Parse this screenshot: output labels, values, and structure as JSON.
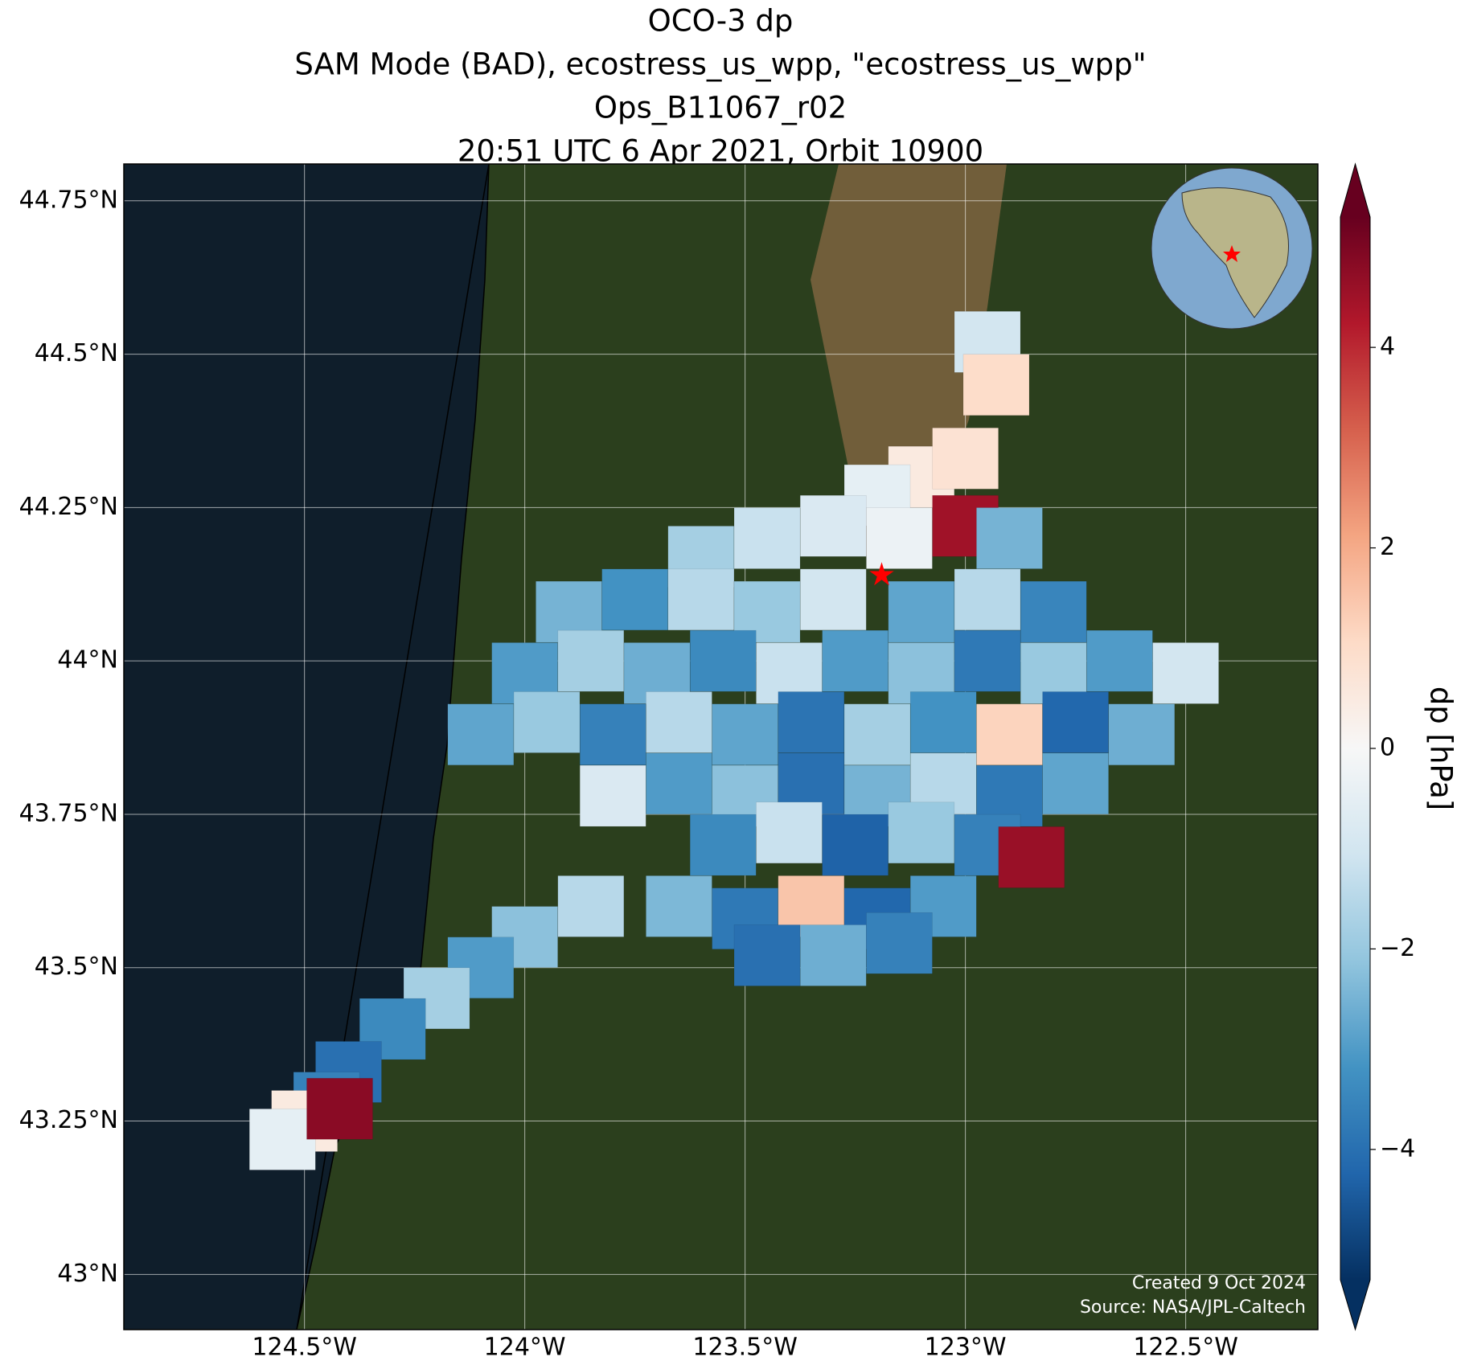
{
  "chart_data": {
    "type": "map",
    "title": [
      "OCO-3 dp",
      "SAM Mode (BAD), ecostress_us_wpp, \"ecostress_us_wpp\"",
      "Ops_B11067_r02",
      "20:51 UTC 6 Apr 2021, Orbit 10900"
    ],
    "xlim": [
      -124.91,
      -122.2
    ],
    "ylim": [
      42.91,
      44.81
    ],
    "xticks": [
      {
        "value": -124.5,
        "label": "124.5°W"
      },
      {
        "value": -124,
        "label": "124°W"
      },
      {
        "value": -123.5,
        "label": "123.5°W"
      },
      {
        "value": -123,
        "label": "123°W"
      },
      {
        "value": -122.5,
        "label": "122.5°W"
      }
    ],
    "yticks": [
      {
        "value": 44.75,
        "label": "44.75°N"
      },
      {
        "value": 44.5,
        "label": "44.5°N"
      },
      {
        "value": 44.25,
        "label": "44.25°N"
      },
      {
        "value": 44,
        "label": "44°N"
      },
      {
        "value": 43.75,
        "label": "43.75°N"
      },
      {
        "value": 43.5,
        "label": "43.5°N"
      },
      {
        "value": 43.25,
        "label": "43.25°N"
      },
      {
        "value": 43,
        "label": "43°N"
      }
    ],
    "grid": true,
    "colorbar_label": "dp [hPa]",
    "clim": [
      -5.3,
      5.3
    ],
    "cticks": [
      {
        "value": 4,
        "label": "4"
      },
      {
        "value": 2,
        "label": "2"
      },
      {
        "value": 0,
        "label": "0"
      },
      {
        "value": -2,
        "label": "−2"
      },
      {
        "value": -4,
        "label": "−4"
      }
    ],
    "colormap": [
      "#053061",
      "#2166ac",
      "#4393c3",
      "#92c5de",
      "#d1e5f0",
      "#f7f7f7",
      "#fddbc7",
      "#f4a582",
      "#d6604d",
      "#b2182b",
      "#67001f"
    ],
    "target": {
      "lon": -123.19,
      "lat": 44.14,
      "color": "#ff0000"
    },
    "lon": [
      -123.1,
      -123.0,
      -123.2,
      -123.6,
      -123.45,
      -123.3,
      -123.15,
      -123.0,
      -122.9,
      -123.9,
      -123.75,
      -123.6,
      -123.45,
      -123.3,
      -123.1,
      -122.95,
      -122.8,
      -124.0,
      -123.85,
      -123.7,
      -123.55,
      -123.4,
      -123.25,
      -123.1,
      -122.95,
      -122.8,
      -122.65,
      -122.5,
      -124.1,
      -123.95,
      -123.8,
      -123.65,
      -123.5,
      -123.35,
      -123.2,
      -123.05,
      -122.9,
      -122.75,
      -122.6,
      -123.8,
      -123.65,
      -123.5,
      -123.35,
      -123.2,
      -123.05,
      -122.9,
      -122.75,
      -123.55,
      -123.4,
      -123.25,
      -123.1,
      -122.95,
      -122.85,
      -123.65,
      -123.5,
      -123.35,
      -123.2,
      -123.05,
      -123.45,
      -123.3,
      -123.15,
      -123.85,
      -124.0,
      -124.1,
      -124.2,
      -124.3,
      -124.4,
      -124.45,
      -124.5,
      -124.55,
      -124.42,
      -122.95,
      -122.93
    ],
    "lat": [
      44.3,
      44.33,
      44.27,
      44.17,
      44.2,
      44.22,
      44.2,
      44.22,
      44.2,
      44.08,
      44.1,
      44.1,
      44.08,
      44.1,
      44.08,
      44.1,
      44.08,
      43.98,
      44.0,
      43.98,
      44.0,
      43.98,
      44.0,
      43.98,
      44.0,
      43.98,
      44.0,
      43.98,
      43.88,
      43.9,
      43.88,
      43.9,
      43.88,
      43.9,
      43.88,
      43.9,
      43.88,
      43.9,
      43.88,
      43.78,
      43.8,
      43.78,
      43.8,
      43.78,
      43.8,
      43.78,
      43.8,
      43.7,
      43.72,
      43.7,
      43.72,
      43.7,
      43.68,
      43.6,
      43.58,
      43.6,
      43.58,
      43.6,
      43.52,
      43.52,
      43.54,
      43.6,
      43.55,
      43.5,
      43.45,
      43.4,
      43.33,
      43.28,
      43.25,
      43.22,
      43.27,
      44.52,
      44.45
    ],
    "values": [
      0.5,
      0.8,
      -0.5,
      -1.8,
      -1.2,
      -0.8,
      -0.3,
      4.5,
      -2.5,
      -2.5,
      -3.2,
      -1.5,
      -2.0,
      -1.0,
      -2.8,
      -1.5,
      -3.5,
      -3.0,
      -1.8,
      -2.6,
      -3.4,
      -1.2,
      -3.0,
      -2.2,
      -3.8,
      -2.0,
      -3.0,
      -1.0,
      -2.8,
      -2.0,
      -3.6,
      -1.5,
      -2.8,
      -3.9,
      -1.8,
      -3.2,
      1.2,
      -4.2,
      -2.6,
      -0.8,
      -3.0,
      -2.2,
      -4.0,
      -2.5,
      -1.5,
      -3.8,
      -2.8,
      -3.4,
      -1.2,
      -4.3,
      -2.0,
      -3.6,
      4.6,
      -2.4,
      -3.8,
      1.5,
      -4.2,
      -3.0,
      -4.0,
      -2.6,
      -3.6,
      -1.5,
      -2.2,
      -3.0,
      -1.8,
      -3.4,
      -4.0,
      -3.6,
      0.5,
      -0.5,
      4.8,
      -1.0,
      1.0
    ],
    "footnotes": [
      "Created 9 Oct 2024",
      "Source: NASA/JPL-Caltech"
    ]
  }
}
